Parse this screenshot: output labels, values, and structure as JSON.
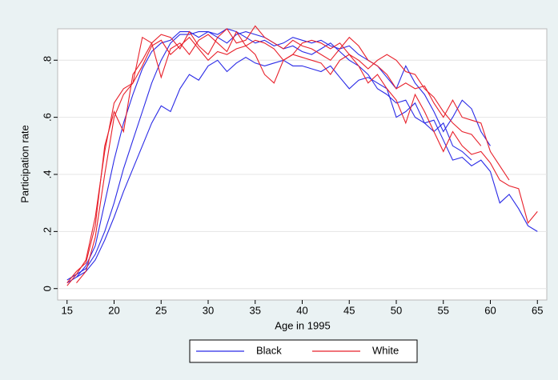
{
  "chart_data": {
    "type": "line",
    "x_label": "Age in 1995",
    "y_label": "Participation rate",
    "xlim": [
      14,
      66
    ],
    "ylim": [
      -0.04,
      0.91
    ],
    "xticks": [
      15,
      20,
      25,
      30,
      35,
      40,
      45,
      50,
      55,
      60,
      65
    ],
    "yticks": [
      0,
      {
        "value": 0.2,
        "label": ".2"
      },
      {
        "value": 0.4,
        "label": ".4"
      },
      {
        "value": 0.6,
        "label": ".6"
      },
      {
        "value": 0.8,
        "label": ".8"
      }
    ],
    "grid": true,
    "series": [
      {
        "name": "Black",
        "color": "#2a2ae6",
        "lines": [
          {
            "x": [
              16,
              17,
              18,
              19,
              20,
              21,
              22,
              23,
              24,
              25,
              26,
              27,
              28,
              29,
              30,
              31,
              32,
              33,
              34,
              35,
              36,
              37,
              38,
              39,
              40,
              41,
              42,
              43,
              44,
              45,
              46,
              47,
              48,
              49,
              50,
              51,
              52,
              53,
              54,
              55,
              56,
              57,
              58,
              59,
              60,
              61,
              62,
              63,
              64,
              65
            ],
            "values": [
              0.04,
              0.06,
              0.1,
              0.17,
              0.25,
              0.34,
              0.42,
              0.5,
              0.58,
              0.64,
              0.62,
              0.7,
              0.75,
              0.73,
              0.78,
              0.8,
              0.76,
              0.79,
              0.81,
              0.79,
              0.78,
              0.79,
              0.8,
              0.78,
              0.78,
              0.77,
              0.76,
              0.78,
              0.74,
              0.7,
              0.73,
              0.74,
              0.72,
              0.7,
              0.6,
              0.62,
              0.65,
              0.58,
              0.59,
              0.52,
              0.45,
              0.46,
              0.43,
              0.45,
              0.41,
              0.3,
              0.33,
              0.28,
              0.22,
              0.2
            ]
          },
          {
            "x": [
              15,
              16,
              17,
              18,
              19,
              20,
              21,
              22,
              23,
              24,
              25,
              26,
              27,
              28,
              29,
              30,
              31,
              32,
              33,
              34,
              35,
              36,
              37,
              38,
              39,
              40,
              41,
              42,
              43,
              44,
              45,
              46,
              47,
              48,
              49,
              50,
              51,
              52,
              53,
              54,
              55,
              56,
              57,
              58,
              59,
              60
            ],
            "values": [
              0.02,
              0.04,
              0.08,
              0.15,
              0.3,
              0.45,
              0.58,
              0.68,
              0.77,
              0.83,
              0.86,
              0.87,
              0.9,
              0.9,
              0.88,
              0.9,
              0.89,
              0.91,
              0.9,
              0.88,
              0.86,
              0.87,
              0.85,
              0.86,
              0.88,
              0.87,
              0.86,
              0.87,
              0.85,
              0.84,
              0.85,
              0.82,
              0.8,
              0.78,
              0.74,
              0.7,
              0.78,
              0.72,
              0.68,
              0.62,
              0.55,
              0.6,
              0.66,
              0.63,
              0.55,
              0.5
            ]
          },
          {
            "x": [
              15,
              16,
              17,
              18,
              19,
              20,
              21,
              22,
              23,
              24,
              25,
              26,
              27,
              28,
              29,
              30,
              31,
              32,
              33,
              34,
              35,
              36,
              37,
              38,
              39,
              40,
              41,
              42,
              43,
              44,
              45,
              46,
              47,
              48,
              49,
              50,
              51,
              52,
              53,
              54,
              55,
              56,
              57,
              58
            ],
            "values": [
              0.03,
              0.05,
              0.07,
              0.12,
              0.2,
              0.3,
              0.42,
              0.52,
              0.62,
              0.72,
              0.8,
              0.86,
              0.89,
              0.89,
              0.9,
              0.9,
              0.88,
              0.86,
              0.89,
              0.9,
              0.89,
              0.88,
              0.86,
              0.84,
              0.85,
              0.83,
              0.82,
              0.84,
              0.86,
              0.83,
              0.8,
              0.78,
              0.75,
              0.7,
              0.68,
              0.65,
              0.66,
              0.6,
              0.58,
              0.55,
              0.58,
              0.5,
              0.48,
              0.45
            ]
          }
        ]
      },
      {
        "name": "White",
        "color": "#e8202a",
        "lines": [
          {
            "x": [
              16,
              17,
              18,
              19,
              20,
              21,
              22,
              23,
              24,
              25,
              26,
              27,
              28,
              29,
              30,
              31,
              32,
              33,
              34,
              35,
              36,
              37,
              38,
              39,
              40,
              41,
              42,
              43,
              44,
              45,
              46,
              47,
              48,
              49,
              50,
              51,
              52,
              53,
              54,
              55,
              56,
              57,
              58,
              59,
              60,
              61,
              62,
              63,
              64,
              65
            ],
            "values": [
              0.02,
              0.06,
              0.18,
              0.4,
              0.6,
              0.68,
              0.72,
              0.78,
              0.85,
              0.87,
              0.82,
              0.85,
              0.88,
              0.84,
              0.8,
              0.83,
              0.82,
              0.84,
              0.85,
              0.82,
              0.75,
              0.72,
              0.8,
              0.82,
              0.81,
              0.8,
              0.79,
              0.75,
              0.8,
              0.82,
              0.78,
              0.72,
              0.75,
              0.7,
              0.66,
              0.58,
              0.68,
              0.62,
              0.55,
              0.48,
              0.55,
              0.5,
              0.47,
              0.48,
              0.44,
              0.38,
              0.36,
              0.35,
              0.23,
              0.27
            ]
          },
          {
            "x": [
              15,
              16,
              17,
              18,
              19,
              20,
              21,
              22,
              23,
              24,
              25,
              26,
              27,
              28,
              29,
              30,
              31,
              32,
              33,
              34,
              35,
              36,
              37,
              38,
              39,
              40,
              41,
              42,
              43,
              44,
              45,
              46,
              47,
              48,
              49,
              50,
              51,
              52,
              53,
              54,
              55,
              56,
              57,
              58,
              59,
              60,
              61,
              62
            ],
            "values": [
              0.01,
              0.05,
              0.1,
              0.25,
              0.48,
              0.65,
              0.7,
              0.72,
              0.88,
              0.86,
              0.89,
              0.88,
              0.84,
              0.9,
              0.85,
              0.82,
              0.88,
              0.91,
              0.86,
              0.87,
              0.92,
              0.88,
              0.86,
              0.84,
              0.87,
              0.85,
              0.84,
              0.82,
              0.8,
              0.84,
              0.88,
              0.85,
              0.8,
              0.78,
              0.75,
              0.7,
              0.72,
              0.7,
              0.71,
              0.65,
              0.6,
              0.66,
              0.6,
              0.59,
              0.58,
              0.48,
              0.43,
              0.38
            ]
          },
          {
            "x": [
              15,
              16,
              17,
              18,
              19,
              20,
              21,
              22,
              23,
              24,
              25,
              26,
              27,
              28,
              29,
              30,
              31,
              32,
              33,
              34,
              35,
              36,
              37,
              38,
              39,
              40,
              41,
              42,
              43,
              44,
              45,
              46,
              47,
              48,
              49,
              50,
              51,
              52,
              53,
              54,
              55,
              56,
              57,
              58,
              59
            ],
            "values": [
              0.02,
              0.06,
              0.09,
              0.22,
              0.5,
              0.62,
              0.55,
              0.75,
              0.8,
              0.86,
              0.74,
              0.84,
              0.86,
              0.82,
              0.87,
              0.89,
              0.86,
              0.83,
              0.9,
              0.85,
              0.87,
              0.86,
              0.84,
              0.8,
              0.82,
              0.86,
              0.87,
              0.86,
              0.84,
              0.86,
              0.82,
              0.8,
              0.77,
              0.8,
              0.82,
              0.8,
              0.76,
              0.75,
              0.7,
              0.67,
              0.62,
              0.58,
              0.55,
              0.54,
              0.5
            ]
          }
        ]
      }
    ]
  }
}
